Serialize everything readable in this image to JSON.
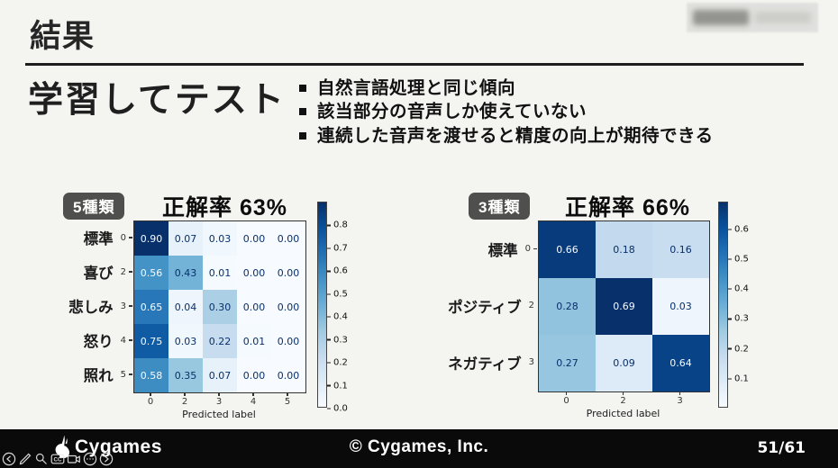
{
  "page": {
    "background": "#f4f4f1"
  },
  "header": {
    "title": "結果"
  },
  "section": {
    "heading": "学習してテスト",
    "bullets": [
      "自然言語処理と同じ傾向",
      "該当部分の音声しか使えていない",
      "連続した音声を渡せると精度の向上が期待できる"
    ]
  },
  "chart_data": [
    {
      "type": "heatmap",
      "badge": "5種類",
      "title": "正解率 63%",
      "colormap": "Blues",
      "row_labels": [
        "標準",
        "喜び",
        "悲しみ",
        "怒り",
        "照れ"
      ],
      "row_tick_numbers": [
        "0",
        "2",
        "3",
        "4",
        "5"
      ],
      "col_tick_numbers": [
        "0",
        "2",
        "3",
        "4",
        "5"
      ],
      "xlabel": "Predicted label",
      "values": [
        [
          0.9,
          0.07,
          0.03,
          0.0,
          0.0
        ],
        [
          0.56,
          0.43,
          0.01,
          0.0,
          0.0
        ],
        [
          0.65,
          0.04,
          0.3,
          0.0,
          0.0
        ],
        [
          0.75,
          0.03,
          0.22,
          0.01,
          0.0
        ],
        [
          0.58,
          0.35,
          0.07,
          0.0,
          0.0
        ]
      ],
      "vmin": 0.0,
      "vmax": 0.9,
      "colorbar_ticks": [
        0.8,
        0.7,
        0.6,
        0.5,
        0.4,
        0.3,
        0.2,
        0.1,
        0.0
      ]
    },
    {
      "type": "heatmap",
      "badge": "3種類",
      "title": "正解率 66%",
      "colormap": "Blues",
      "row_labels": [
        "標準",
        "ポジティブ",
        "ネガティブ"
      ],
      "row_tick_numbers": [
        "0",
        "2",
        "3"
      ],
      "col_tick_numbers": [
        "0",
        "2",
        "3"
      ],
      "xlabel": "Predicted label",
      "values": [
        [
          0.66,
          0.18,
          0.16
        ],
        [
          0.28,
          0.69,
          0.03
        ],
        [
          0.27,
          0.09,
          0.64
        ]
      ],
      "vmin": 0.0,
      "vmax": 0.69,
      "colorbar_ticks": [
        0.6,
        0.5,
        0.4,
        0.3,
        0.2,
        0.1
      ]
    }
  ],
  "footer": {
    "brand": "Cygames",
    "copyright": "© Cygames, Inc.",
    "page_number": "51/61"
  },
  "toolbar": {
    "cc_label": "CC"
  },
  "colors": {
    "cell_dark_text": "#f7fbff",
    "cell_light_text": "#08306b",
    "badge_bg": "#4f4f4d",
    "footer_bg": "#0a0a0a"
  }
}
